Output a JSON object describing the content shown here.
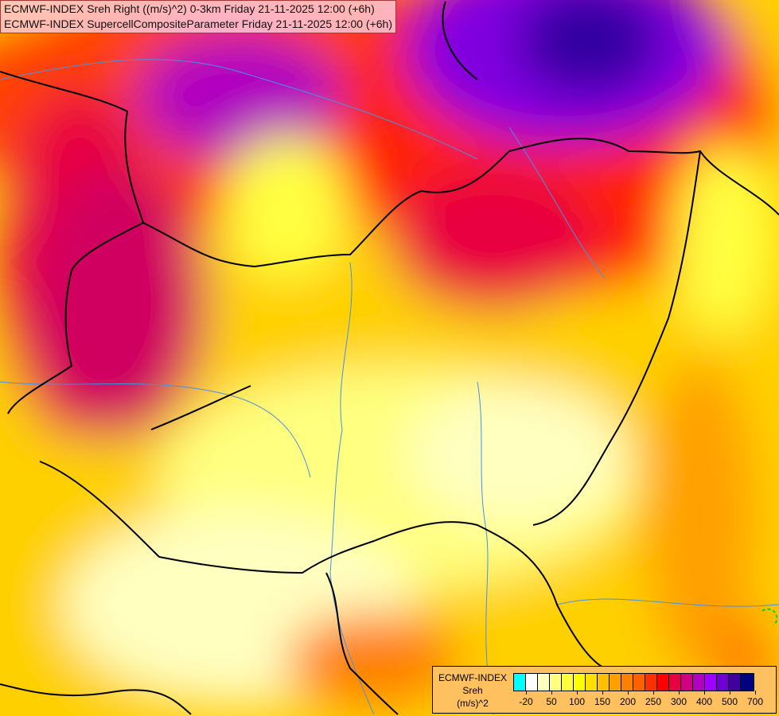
{
  "title": {
    "line1": "ECMWF-INDEX Sreh Right ((m/s)^2) 0-3km Friday 21-11-2025 12:00 (+6h)",
    "line2": "ECMWF-INDEX SupercellCompositeParameter Friday 21-11-2025 12:00 (+6h)"
  },
  "legend": {
    "line1": "ECMWF-INDEX",
    "line2": "Sreh",
    "line3": "(m/s)^2",
    "colors": [
      "#00ffff",
      "#ffffff",
      "#ffffc0",
      "#ffff80",
      "#ffff40",
      "#ffff00",
      "#ffe000",
      "#ffc000",
      "#ffa000",
      "#ff8000",
      "#ff6000",
      "#ff3000",
      "#ff0000",
      "#e80040",
      "#d00080",
      "#b000c0",
      "#a000ff",
      "#7000d0",
      "#4000a0",
      "#000080"
    ],
    "labels": [
      "-20",
      "50",
      "100",
      "150",
      "200",
      "250",
      "300",
      "400",
      "500",
      "700"
    ]
  }
}
